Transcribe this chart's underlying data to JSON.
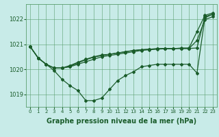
{
  "background_color": "#c8ebe8",
  "grid_color": "#5a9e6e",
  "line_color": "#1a5c2a",
  "marker": "D",
  "marker_size": 2.0,
  "line_width": 0.9,
  "xlabel": "Graphe pression niveau de la mer (hPa)",
  "xlabel_fontsize": 7,
  "xlabel_fontweight": "bold",
  "xtick_fontsize": 5,
  "ytick_fontsize": 6,
  "ylim": [
    1018.5,
    1022.6
  ],
  "yticks": [
    1019,
    1020,
    1021,
    1022
  ],
  "s1": [
    1020.9,
    1020.45,
    1020.2,
    1020.05,
    1020.05,
    1020.1,
    1020.2,
    1020.3,
    1020.4,
    1020.5,
    1020.55,
    1020.6,
    1020.65,
    1020.7,
    1020.75,
    1020.78,
    1020.8,
    1020.82,
    1020.82,
    1020.85,
    1020.85,
    1021.5,
    1022.15,
    1022.25
  ],
  "s2": [
    1020.9,
    1020.45,
    1020.2,
    1020.05,
    1020.05,
    1020.12,
    1020.25,
    1020.38,
    1020.48,
    1020.55,
    1020.6,
    1020.65,
    1020.7,
    1020.75,
    1020.78,
    1020.8,
    1020.82,
    1020.83,
    1020.83,
    1020.83,
    1020.83,
    1021.15,
    1021.98,
    1022.1
  ],
  "s3": [
    1020.9,
    1020.45,
    1020.2,
    1020.05,
    1020.05,
    1020.15,
    1020.28,
    1020.4,
    1020.5,
    1020.57,
    1020.6,
    1020.65,
    1020.7,
    1020.75,
    1020.78,
    1020.8,
    1020.82,
    1020.83,
    1020.83,
    1020.83,
    1020.83,
    1020.85,
    1022.1,
    1022.2
  ],
  "s4": [
    1020.9,
    1020.45,
    1020.2,
    1019.95,
    1019.6,
    1019.35,
    1019.15,
    1018.75,
    1018.75,
    1018.85,
    1019.2,
    1019.55,
    1019.75,
    1019.9,
    1020.1,
    1020.15,
    1020.2,
    1020.2,
    1020.2,
    1020.2,
    1020.2,
    1019.85,
    1022.05,
    1022.2
  ]
}
